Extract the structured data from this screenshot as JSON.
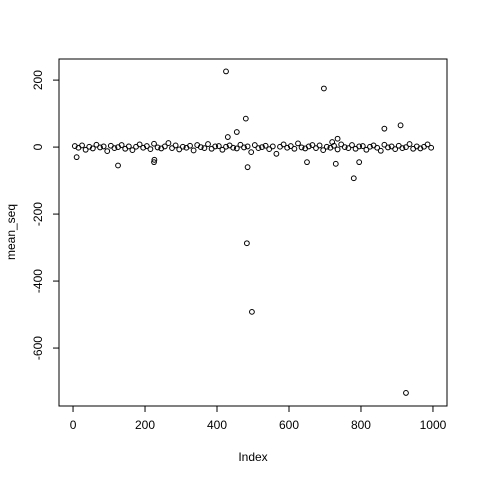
{
  "chart_data": {
    "type": "scatter",
    "xlabel": "Index",
    "ylabel": "mean_seq",
    "x": [
      10,
      125,
      225,
      226,
      425,
      430,
      455,
      480,
      483,
      485,
      497,
      650,
      697,
      720,
      730,
      735,
      780,
      795,
      865,
      910,
      925,
      5,
      15,
      25,
      35,
      45,
      55,
      65,
      75,
      85,
      95,
      105,
      115,
      125,
      135,
      145,
      155,
      165,
      175,
      185,
      195,
      205,
      215,
      225,
      235,
      245,
      255,
      265,
      275,
      285,
      295,
      305,
      315,
      325,
      335,
      345,
      355,
      365,
      375,
      385,
      395,
      405,
      415,
      425,
      435,
      445,
      455,
      465,
      475,
      485,
      495,
      505,
      515,
      525,
      535,
      545,
      555,
      565,
      575,
      585,
      595,
      605,
      615,
      625,
      635,
      645,
      655,
      665,
      675,
      685,
      695,
      705,
      715,
      725,
      735,
      745,
      755,
      765,
      775,
      785,
      795,
      805,
      815,
      825,
      835,
      845,
      855,
      865,
      875,
      885,
      895,
      905,
      915,
      925,
      935,
      945,
      955,
      965,
      975,
      985,
      995
    ],
    "values": [
      -30,
      -55,
      -45,
      -38,
      226,
      30,
      45,
      85,
      -287,
      -60,
      -492,
      -45,
      175,
      15,
      -50,
      25,
      -93,
      -45,
      55,
      65,
      -734,
      3,
      -2,
      5,
      -8,
      1,
      -4,
      7,
      -1,
      2,
      -12,
      4,
      -3,
      0,
      6,
      -5,
      2,
      -9,
      1,
      8,
      -2,
      3,
      -6,
      10,
      -1,
      -4,
      2,
      12,
      -3,
      5,
      -7,
      1,
      -2,
      4,
      -10,
      6,
      0,
      -3,
      9,
      -5,
      2,
      3,
      -8,
      1,
      5,
      -2,
      -4,
      7,
      -1,
      2,
      -15,
      6,
      -3,
      0,
      4,
      -6,
      2,
      -20,
      1,
      8,
      -2,
      3,
      -5,
      11,
      -1,
      -4,
      2,
      6,
      -3,
      5,
      -9,
      1,
      -2,
      4,
      -7,
      8,
      0,
      -3,
      6,
      -5,
      2,
      3,
      -8,
      1,
      5,
      -2,
      -11,
      7,
      -1,
      2,
      -6,
      4,
      -3,
      0,
      9,
      -5,
      2,
      -4,
      1,
      8,
      -2
    ],
    "color": "#000000",
    "xlim": [
      -39,
      1039
    ],
    "ylim": [
      -773,
      263
    ],
    "xticks": [
      0,
      200,
      400,
      600,
      800,
      1000
    ],
    "yticks": [
      -600,
      -400,
      -200,
      0,
      200
    ]
  }
}
